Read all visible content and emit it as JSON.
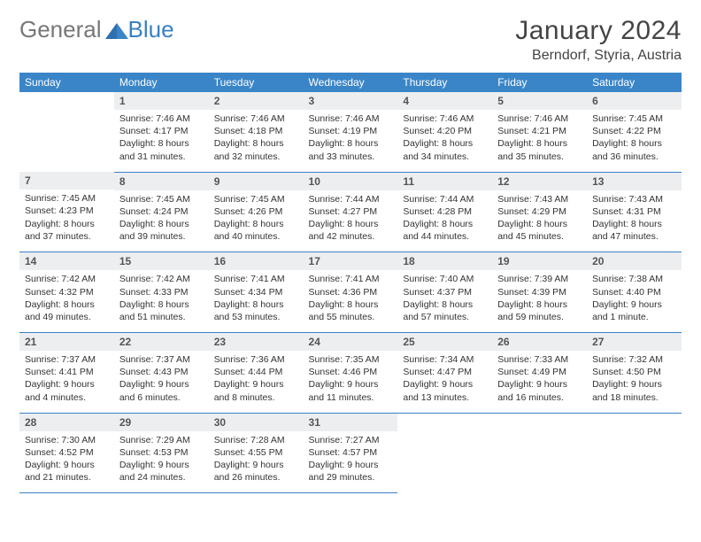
{
  "logo": {
    "text1": "General",
    "text2": "Blue"
  },
  "title": "January 2024",
  "location": "Berndorf, Styria, Austria",
  "colors": {
    "header_bg": "#3a85c8",
    "rule": "#3a7fc4",
    "daynum_bg": "#eceef0"
  },
  "weekdays": [
    "Sunday",
    "Monday",
    "Tuesday",
    "Wednesday",
    "Thursday",
    "Friday",
    "Saturday"
  ],
  "start_offset": 1,
  "days": [
    {
      "n": 1,
      "sunrise": "7:46 AM",
      "sunset": "4:17 PM",
      "daylight": "8 hours and 31 minutes."
    },
    {
      "n": 2,
      "sunrise": "7:46 AM",
      "sunset": "4:18 PM",
      "daylight": "8 hours and 32 minutes."
    },
    {
      "n": 3,
      "sunrise": "7:46 AM",
      "sunset": "4:19 PM",
      "daylight": "8 hours and 33 minutes."
    },
    {
      "n": 4,
      "sunrise": "7:46 AM",
      "sunset": "4:20 PM",
      "daylight": "8 hours and 34 minutes."
    },
    {
      "n": 5,
      "sunrise": "7:46 AM",
      "sunset": "4:21 PM",
      "daylight": "8 hours and 35 minutes."
    },
    {
      "n": 6,
      "sunrise": "7:45 AM",
      "sunset": "4:22 PM",
      "daylight": "8 hours and 36 minutes."
    },
    {
      "n": 7,
      "sunrise": "7:45 AM",
      "sunset": "4:23 PM",
      "daylight": "8 hours and 37 minutes."
    },
    {
      "n": 8,
      "sunrise": "7:45 AM",
      "sunset": "4:24 PM",
      "daylight": "8 hours and 39 minutes."
    },
    {
      "n": 9,
      "sunrise": "7:45 AM",
      "sunset": "4:26 PM",
      "daylight": "8 hours and 40 minutes."
    },
    {
      "n": 10,
      "sunrise": "7:44 AM",
      "sunset": "4:27 PM",
      "daylight": "8 hours and 42 minutes."
    },
    {
      "n": 11,
      "sunrise": "7:44 AM",
      "sunset": "4:28 PM",
      "daylight": "8 hours and 44 minutes."
    },
    {
      "n": 12,
      "sunrise": "7:43 AM",
      "sunset": "4:29 PM",
      "daylight": "8 hours and 45 minutes."
    },
    {
      "n": 13,
      "sunrise": "7:43 AM",
      "sunset": "4:31 PM",
      "daylight": "8 hours and 47 minutes."
    },
    {
      "n": 14,
      "sunrise": "7:42 AM",
      "sunset": "4:32 PM",
      "daylight": "8 hours and 49 minutes."
    },
    {
      "n": 15,
      "sunrise": "7:42 AM",
      "sunset": "4:33 PM",
      "daylight": "8 hours and 51 minutes."
    },
    {
      "n": 16,
      "sunrise": "7:41 AM",
      "sunset": "4:34 PM",
      "daylight": "8 hours and 53 minutes."
    },
    {
      "n": 17,
      "sunrise": "7:41 AM",
      "sunset": "4:36 PM",
      "daylight": "8 hours and 55 minutes."
    },
    {
      "n": 18,
      "sunrise": "7:40 AM",
      "sunset": "4:37 PM",
      "daylight": "8 hours and 57 minutes."
    },
    {
      "n": 19,
      "sunrise": "7:39 AM",
      "sunset": "4:39 PM",
      "daylight": "8 hours and 59 minutes."
    },
    {
      "n": 20,
      "sunrise": "7:38 AM",
      "sunset": "4:40 PM",
      "daylight": "9 hours and 1 minute."
    },
    {
      "n": 21,
      "sunrise": "7:37 AM",
      "sunset": "4:41 PM",
      "daylight": "9 hours and 4 minutes."
    },
    {
      "n": 22,
      "sunrise": "7:37 AM",
      "sunset": "4:43 PM",
      "daylight": "9 hours and 6 minutes."
    },
    {
      "n": 23,
      "sunrise": "7:36 AM",
      "sunset": "4:44 PM",
      "daylight": "9 hours and 8 minutes."
    },
    {
      "n": 24,
      "sunrise": "7:35 AM",
      "sunset": "4:46 PM",
      "daylight": "9 hours and 11 minutes."
    },
    {
      "n": 25,
      "sunrise": "7:34 AM",
      "sunset": "4:47 PM",
      "daylight": "9 hours and 13 minutes."
    },
    {
      "n": 26,
      "sunrise": "7:33 AM",
      "sunset": "4:49 PM",
      "daylight": "9 hours and 16 minutes."
    },
    {
      "n": 27,
      "sunrise": "7:32 AM",
      "sunset": "4:50 PM",
      "daylight": "9 hours and 18 minutes."
    },
    {
      "n": 28,
      "sunrise": "7:30 AM",
      "sunset": "4:52 PM",
      "daylight": "9 hours and 21 minutes."
    },
    {
      "n": 29,
      "sunrise": "7:29 AM",
      "sunset": "4:53 PM",
      "daylight": "9 hours and 24 minutes."
    },
    {
      "n": 30,
      "sunrise": "7:28 AM",
      "sunset": "4:55 PM",
      "daylight": "9 hours and 26 minutes."
    },
    {
      "n": 31,
      "sunrise": "7:27 AM",
      "sunset": "4:57 PM",
      "daylight": "9 hours and 29 minutes."
    }
  ],
  "labels": {
    "sunrise": "Sunrise:",
    "sunset": "Sunset:",
    "daylight": "Daylight:"
  }
}
